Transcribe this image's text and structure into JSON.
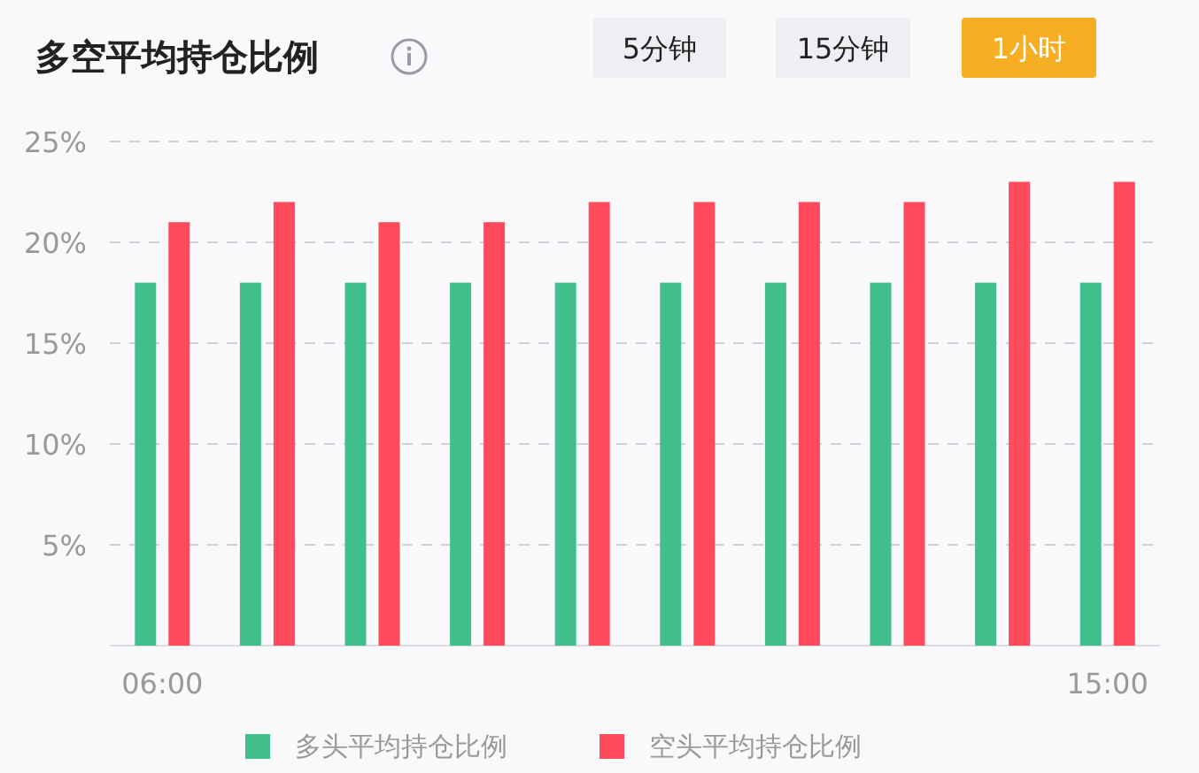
{
  "chart_data": {
    "type": "bar",
    "title": "多空平均持仓比例",
    "categories": [
      "06:00",
      null,
      null,
      null,
      null,
      null,
      null,
      null,
      null,
      "15:00"
    ],
    "series": [
      {
        "name": "多头平均持仓比例",
        "color": "#40bf8c",
        "values": [
          18,
          18,
          18,
          18,
          18,
          18,
          18,
          18,
          18,
          18
        ]
      },
      {
        "name": "空头平均持仓比例",
        "color": "#ff4b5c",
        "values": [
          21,
          22,
          21,
          21,
          22,
          22,
          22,
          22,
          23,
          23
        ]
      }
    ],
    "ylim": [
      0,
      25
    ],
    "yticks": [
      {
        "value": 5,
        "label": "5%"
      },
      {
        "value": 10,
        "label": "10%"
      },
      {
        "value": 15,
        "label": "15%"
      },
      {
        "value": 20,
        "label": "20%"
      },
      {
        "value": 25,
        "label": "25%"
      }
    ],
    "grid": "y",
    "legend": "bottom",
    "annotations": [
      "5分钟",
      "15分钟",
      "1小时"
    ]
  }
}
